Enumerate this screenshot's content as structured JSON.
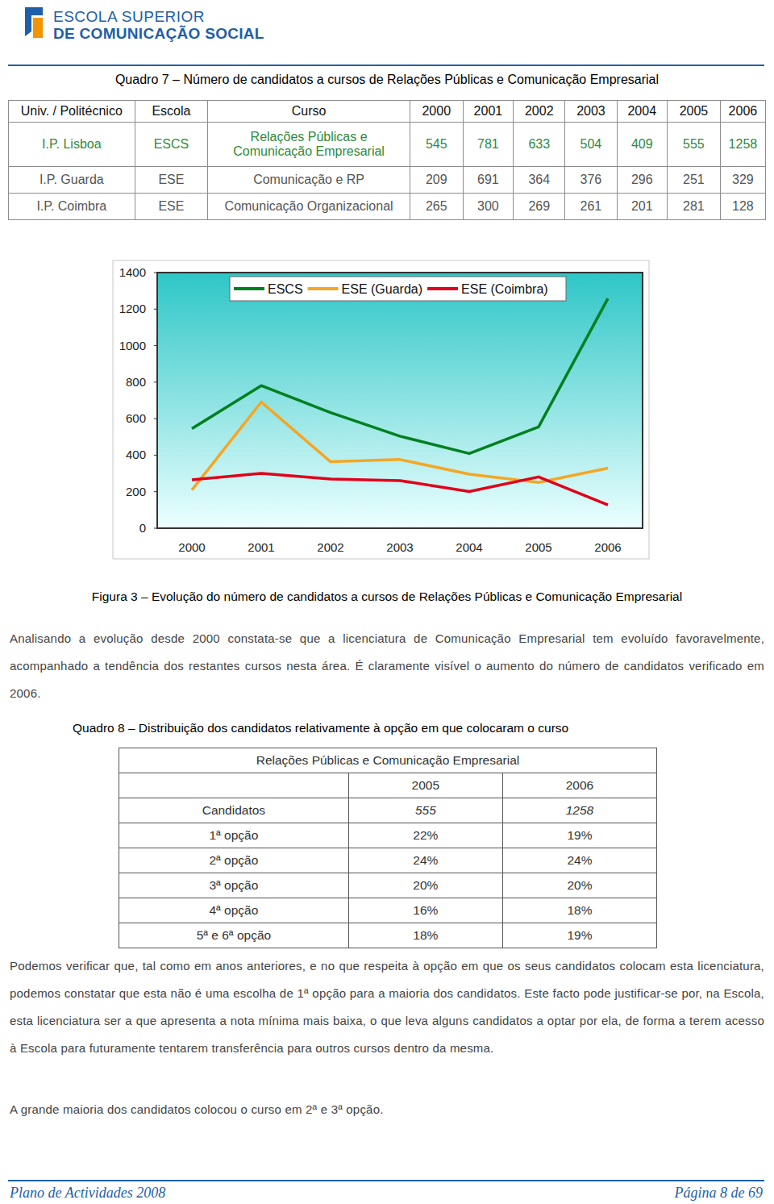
{
  "header": {
    "logo_line1": "ESCOLA SUPERIOR",
    "logo_line2": "DE COMUNICAÇÃO SOCIAL"
  },
  "table7": {
    "title": "Quadro 7 – Número de candidatos a cursos de Relações Públicas e Comunicação Empresarial",
    "columns": [
      "Univ. / Politécnico",
      "Escola",
      "Curso",
      "2000",
      "2001",
      "2002",
      "2003",
      "2004",
      "2005",
      "2006"
    ],
    "rows": [
      [
        "I.P. Lisboa",
        "ESCS",
        "Relações Públicas e Comunicação Empresarial",
        545,
        781,
        633,
        504,
        409,
        555,
        1258
      ],
      [
        "I.P. Guarda",
        "ESE",
        "Comunicação e RP",
        209,
        691,
        364,
        376,
        296,
        251,
        329
      ],
      [
        "I.P. Coimbra",
        "ESE",
        "Comunicação Organizacional",
        265,
        300,
        269,
        261,
        201,
        281,
        128
      ]
    ]
  },
  "chart_data": {
    "type": "line",
    "categories": [
      "2000",
      "2001",
      "2002",
      "2003",
      "2004",
      "2005",
      "2006"
    ],
    "series": [
      {
        "name": "ESCS",
        "color": "#00801f",
        "values": [
          545,
          781,
          633,
          504,
          409,
          555,
          1258
        ]
      },
      {
        "name": "ESE (Guarda)",
        "color": "#f5a623",
        "values": [
          209,
          691,
          364,
          376,
          296,
          251,
          329
        ]
      },
      {
        "name": "ESE (Coimbra)",
        "color": "#e2001a",
        "values": [
          265,
          300,
          269,
          261,
          201,
          281,
          128
        ]
      }
    ],
    "ylim": [
      0,
      1400
    ],
    "yticks": [
      0,
      200,
      400,
      600,
      800,
      1000,
      1200,
      1400
    ],
    "legend": "top",
    "grid": false
  },
  "figure_caption": "Figura 3 – Evolução do número de candidatos a cursos de Relações Públicas e Comunicação Empresarial",
  "paragraph1": "Analisando a evolução desde 2000 constata-se que a licenciatura de Comunicação Empresarial tem evoluído favoravelmente, acompanhado a tendência dos restantes cursos nesta área. É claramente visível o aumento do número de candidatos verificado em 2006.",
  "table8": {
    "title": "Quadro 8 – Distribuição dos candidatos relativamente à opção em que colocaram o curso",
    "header": "Relações Públicas e Comunicação Empresarial",
    "years": [
      "2005",
      "2006"
    ],
    "rows": [
      {
        "label": "Candidatos",
        "values": [
          "555",
          "1258"
        ]
      },
      {
        "label": "1ª opção",
        "values": [
          "22%",
          "19%"
        ]
      },
      {
        "label": "2ª opção",
        "values": [
          "24%",
          "24%"
        ]
      },
      {
        "label": "3ª opção",
        "values": [
          "20%",
          "20%"
        ]
      },
      {
        "label": "4ª opção",
        "values": [
          "16%",
          "18%"
        ]
      },
      {
        "label": "5ª e 6ª opção",
        "values": [
          "18%",
          "19%"
        ]
      }
    ]
  },
  "paragraph2": "Podemos verificar que, tal como em anos anteriores, e no que respeita à opção em que os seus candidatos colocam esta licenciatura, podemos constatar que esta não é uma escolha de 1ª opção para a maioria dos candidatos. Este facto pode justificar-se por, na Escola, esta licenciatura ser a que apresenta a nota mínima mais baixa, o que leva alguns candidatos a optar por ela, de forma a terem acesso à Escola para futuramente tentarem transferência para outros cursos dentro da mesma.",
  "paragraph3": "A grande maioria dos candidatos colocou o curso em 2ª e 3ª opção.",
  "footer": {
    "left": "Plano de Actividades 2008",
    "right": "Página 8 de 69"
  }
}
